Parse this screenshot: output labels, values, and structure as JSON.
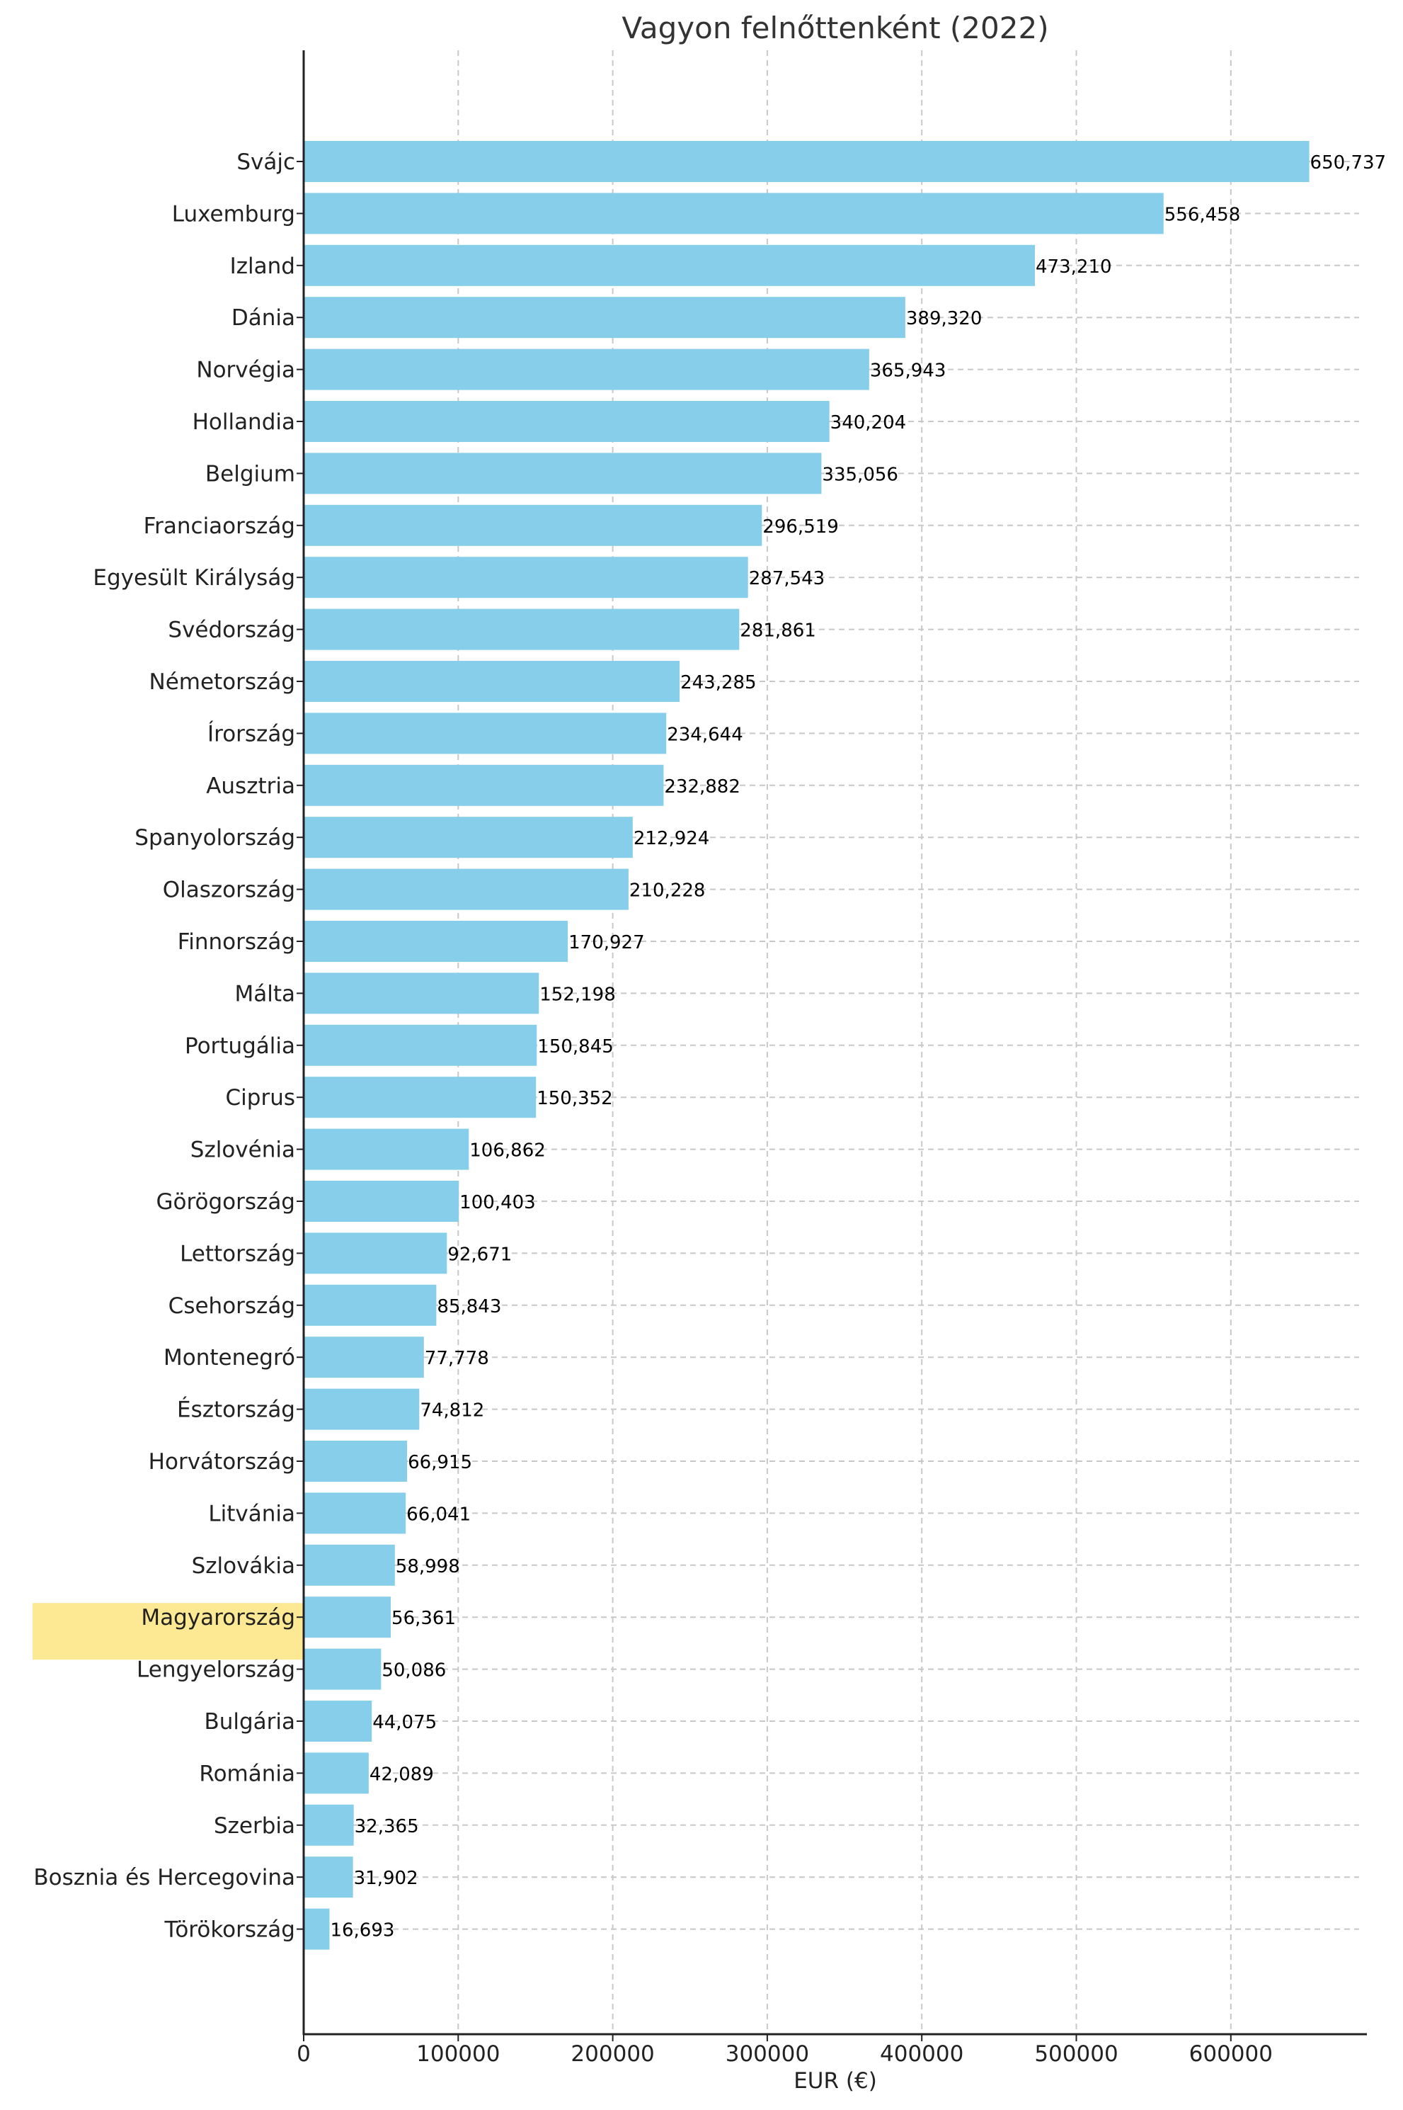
{
  "chart_data": {
    "type": "bar",
    "orientation": "horizontal",
    "title": "Vagyon felnőttenként (2022)",
    "xlabel": "EUR (€)",
    "ylabel": "",
    "xlim": [
      0,
      680000
    ],
    "xticks": [
      0,
      100000,
      200000,
      300000,
      400000,
      500000,
      600000
    ],
    "xtick_labels": [
      "0",
      "100000",
      "200000",
      "300000",
      "400000",
      "500000",
      "600000"
    ],
    "grid": true,
    "bar_color": "#87CEEB",
    "highlight_color": "#FDE893",
    "highlight_text_color": "#8A7A2A",
    "highlight_category": "Magyarország",
    "categories": [
      "Svájc",
      "Luxemburg",
      "Izland",
      "Dánia",
      "Norvégia",
      "Hollandia",
      "Belgium",
      "Franciaország",
      "Egyesült Királyság",
      "Svédország",
      "Németország",
      "Írország",
      "Ausztria",
      "Spanyolország",
      "Olaszország",
      "Finnország",
      "Málta",
      "Portugália",
      "Ciprus",
      "Szlovénia",
      "Görögország",
      "Lettország",
      "Csehország",
      "Montenegró",
      "Észtország",
      "Horvátország",
      "Litvánia",
      "Szlovákia",
      "Magyarország",
      "Lengyelország",
      "Bulgária",
      "Románia",
      "Szerbia",
      "Bosznia és Hercegovina",
      "Törökország"
    ],
    "values": [
      650737,
      556458,
      473210,
      389320,
      365943,
      340204,
      335056,
      296519,
      287543,
      281861,
      243285,
      234644,
      232882,
      212924,
      210228,
      170927,
      152198,
      150845,
      150352,
      106862,
      100403,
      92671,
      85843,
      77778,
      74812,
      66915,
      66041,
      58998,
      56361,
      50086,
      44075,
      42089,
      32365,
      31902,
      16693
    ],
    "value_labels": [
      "650,737",
      "556,458",
      "473,210",
      "389,320",
      "365,943",
      "340,204",
      "335,056",
      "296,519",
      "287,543",
      "281,861",
      "243,285",
      "234,644",
      "232,882",
      "212,924",
      "210,228",
      "170,927",
      "152,198",
      "150,845",
      "150,352",
      "106,862",
      "100,403",
      "92,671",
      "85,843",
      "77,778",
      "74,812",
      "66,915",
      "66,041",
      "58,998",
      "56,361",
      "50,086",
      "44,075",
      "42,089",
      "32,365",
      "31,902",
      "16,693"
    ]
  }
}
